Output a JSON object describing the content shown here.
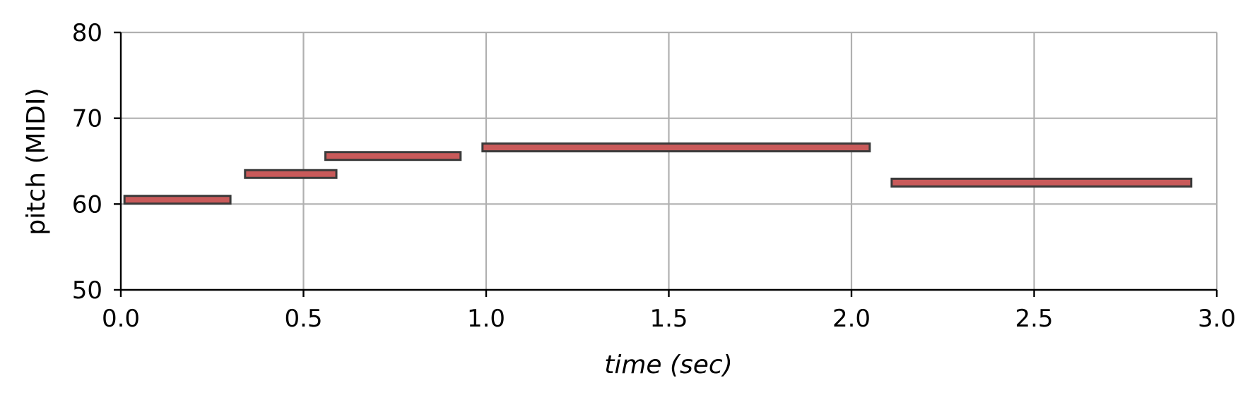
{
  "chart_data": {
    "type": "bar",
    "orientation": "horizontal",
    "title": "",
    "xlabel": "time (sec)",
    "ylabel": "pitch (MIDI)",
    "xlim": [
      0.0,
      3.0
    ],
    "ylim": [
      50,
      80
    ],
    "xticks": [
      "0.0",
      "0.5",
      "1.0",
      "1.5",
      "2.0",
      "2.5",
      "3.0"
    ],
    "yticks": [
      "50",
      "60",
      "70",
      "80"
    ],
    "grid": true,
    "notes": [
      {
        "start": 0.01,
        "end": 0.3,
        "pitch": 60.5
      },
      {
        "start": 0.34,
        "end": 0.59,
        "pitch": 63.5
      },
      {
        "start": 0.56,
        "end": 0.93,
        "pitch": 65.6
      },
      {
        "start": 0.99,
        "end": 2.05,
        "pitch": 66.6
      },
      {
        "start": 2.11,
        "end": 2.93,
        "pitch": 62.5
      }
    ],
    "colors": {
      "note_fill": "#c95a5a",
      "note_edge": "#3a3a3a",
      "grid": "#b0b0b0",
      "axis": "#000000"
    }
  }
}
